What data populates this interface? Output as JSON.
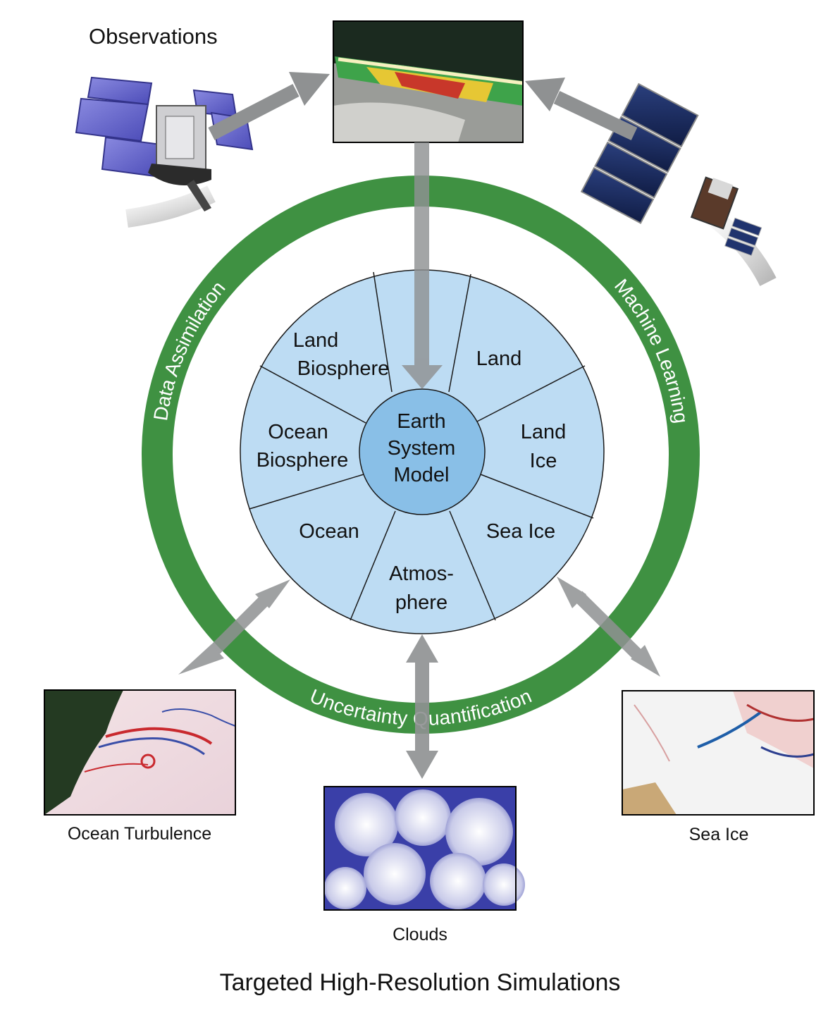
{
  "observations_label": "Observations",
  "footer_title": "Targeted High-Resolution Simulations",
  "center": {
    "line1": "Earth",
    "line2": "System",
    "line3": "Model"
  },
  "ring": {
    "left": "Data Assimilation",
    "right": "Machine Learning",
    "bottom": "Uncertainty Quantification"
  },
  "segments": {
    "land_biosphere": [
      "Land",
      "Biosphere"
    ],
    "land": "Land",
    "land_ice": [
      "Land",
      "Ice"
    ],
    "sea_ice": "Sea Ice",
    "atmosphere": [
      "Atmos-",
      "phere"
    ],
    "ocean": "Ocean",
    "ocean_biosphere": [
      "Ocean",
      "Biosphere"
    ]
  },
  "captions": {
    "ocean_turbulence": "Ocean Turbulence",
    "clouds": "Clouds",
    "sea_ice": "Sea Ice"
  },
  "colors": {
    "ring_green": "#3f9142",
    "wheel_fill": "#bddcf3",
    "center_fill": "#89bfe7",
    "arrow_gray": "#8f9192"
  }
}
